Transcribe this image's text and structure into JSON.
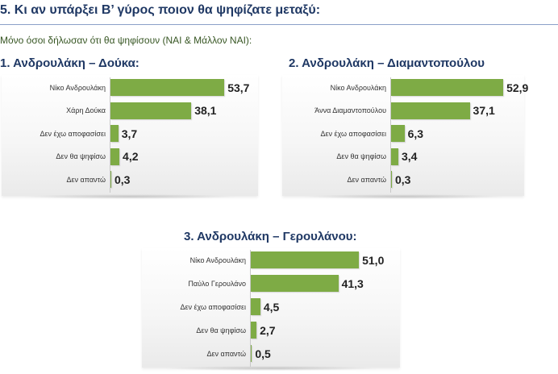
{
  "header": {
    "question": "5. Κι αν υπάρξει Β’ γύρος ποιον θα ψηφίζατε μεταξύ:",
    "subtitle": "Μόνο όσοι δήλωσαν ότι θα ψηφίσουν (ΝΑΙ & Μάλλον ΝΑΙ):"
  },
  "colors": {
    "bar": "#7eab45",
    "title": "#1f3864",
    "subtitle": "#375623"
  },
  "chart_data": [
    {
      "type": "bar",
      "orientation": "horizontal",
      "title": "1. Ανδρουλάκη – Δούκα:",
      "categories": [
        "Νίκο Ανδρουλάκη",
        "Χάρη Δούκα",
        "Δεν έχω αποφασίσει",
        "Δεν θα ψηφίσω",
        "Δεν απαντώ"
      ],
      "values": [
        53.7,
        38.1,
        3.7,
        4.2,
        0.3
      ],
      "value_labels": [
        "53,7",
        "38,1",
        "3,7",
        "4,2",
        "0,3"
      ],
      "xlim": [
        0,
        60
      ]
    },
    {
      "type": "bar",
      "orientation": "horizontal",
      "title": "2. Ανδρουλάκη – Διαμαντοπούλου",
      "categories": [
        "Νίκο Ανδρουλάκη",
        "Άννα Διαμαντοπούλου",
        "Δεν έχω αποφασίσει",
        "Δεν θα ψηφίσω",
        "Δεν απαντώ"
      ],
      "values": [
        52.9,
        37.1,
        6.3,
        3.4,
        0.3
      ],
      "value_labels": [
        "52,9",
        "37,1",
        "6,3",
        "3,4",
        "0,3"
      ],
      "xlim": [
        0,
        60
      ]
    },
    {
      "type": "bar",
      "orientation": "horizontal",
      "title": "3. Ανδρουλάκη – Γερουλάνου:",
      "categories": [
        "Νίκο Ανδρουλάκη",
        "Παύλο Γερουλάνο",
        "Δεν έχω αποφασίσει",
        "Δεν θα ψηφίσω",
        "Δεν απαντώ"
      ],
      "values": [
        51.0,
        41.3,
        4.5,
        2.7,
        0.5
      ],
      "value_labels": [
        "51,0",
        "41,3",
        "4,5",
        "2,7",
        "0,5"
      ],
      "xlim": [
        0,
        60
      ]
    }
  ]
}
